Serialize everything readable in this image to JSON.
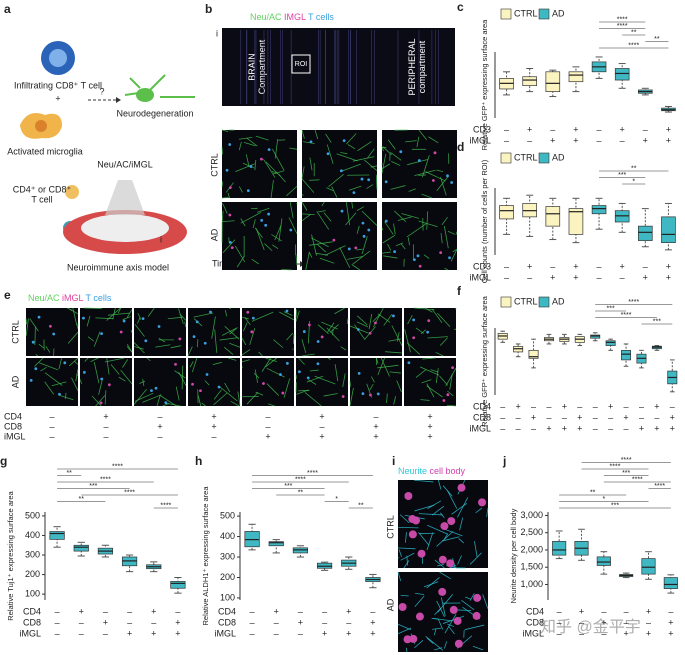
{
  "panel_a": {
    "label": "a",
    "t_cell": "Infiltrating CD8⁺ T cell",
    "plus": "+",
    "question": "?",
    "neurodegeneration": "Neurodegeneration",
    "microglia": "Activated microglia",
    "culture": "Neu/AC/iMGL",
    "cd_cells": [
      "CD4⁺ or CD8⁺",
      "T cell"
    ],
    "inset": "i",
    "model": "Neuroimmune axis model"
  },
  "panel_b": {
    "label": "b",
    "stains": [
      "Neu/AC",
      "IMGL",
      "T cells"
    ],
    "inset": "i",
    "brain": [
      "BRAIN",
      "Compartment"
    ],
    "roi": "ROI",
    "peripheral": [
      "PERIPHERAL",
      "compartment"
    ],
    "rows": [
      "CTRL",
      "AD"
    ],
    "time": "Time"
  },
  "panel_e": {
    "label": "e",
    "stains": [
      "Neu/AC",
      "iMGL",
      "T cells"
    ],
    "rows": [
      "CTRL",
      "AD"
    ],
    "conditions": [
      {
        "name": "CD4",
        "signs": [
          "–",
          "+",
          "–",
          "+",
          "–",
          "+",
          "–",
          "+"
        ]
      },
      {
        "name": "CD8",
        "signs": [
          "–",
          "–",
          "+",
          "+",
          "–",
          "–",
          "+",
          "+"
        ]
      },
      {
        "name": "iMGL",
        "signs": [
          "–",
          "–",
          "–",
          "–",
          "+",
          "+",
          "+",
          "+"
        ]
      }
    ]
  },
  "panel_i": {
    "label": "i",
    "stains": [
      "Neurite",
      "cell body"
    ],
    "rows": [
      "CTRL",
      "AD"
    ]
  },
  "watermark": "知乎 @金平宇",
  "chart_data": [
    {
      "type": "box",
      "label": "c",
      "ylabel": "Relative GFP⁺ expressing surface area",
      "ylim": [
        20,
        220
      ],
      "series": [
        {
          "name": "CTRL",
          "color": "#fbf3c0",
          "values": [
            [
              90,
              108,
              125,
              140,
              160
            ],
            [
              100,
              118,
              135,
              145,
              170
            ],
            [
              85,
              100,
              125,
              160,
              165
            ],
            [
              100,
              130,
              150,
              160,
              175
            ]
          ]
        },
        {
          "name": "AD",
          "color": "#3fb8c4",
          "values": [
            [
              140,
              160,
              175,
              190,
              205
            ],
            [
              110,
              135,
              155,
              170,
              185
            ],
            [
              90,
              95,
              100,
              105,
              110
            ],
            [
              38,
              42,
              45,
              50,
              55
            ]
          ]
        }
      ],
      "conditions": [
        {
          "name": "CD3",
          "signs": [
            "–",
            "+",
            "–",
            "+",
            "–",
            "+",
            "–",
            "+"
          ]
        },
        {
          "name": "iMGL",
          "signs": [
            "–",
            "–",
            "+",
            "+",
            "–",
            "–",
            "+",
            "+"
          ]
        }
      ],
      "brackets": [
        {
          "label": "****",
          "between": [
            4,
            6
          ]
        },
        {
          "label": "****",
          "between": [
            4,
            6
          ]
        },
        {
          "label": "**",
          "between": [
            5,
            6
          ]
        },
        {
          "label": "**",
          "between": [
            6,
            7
          ]
        },
        {
          "label": "****",
          "between": [
            4,
            7
          ]
        }
      ]
    },
    {
      "type": "box",
      "label": "d",
      "ylabel": "Cell counts (number of cells per ROI)",
      "ylim": [
        0,
        65
      ],
      "series": [
        {
          "name": "CTRL",
          "color": "#fbf3c0",
          "values": [
            [
              20,
              35,
              43,
              48,
              55
            ],
            [
              18,
              37,
              43,
              50,
              58
            ],
            [
              15,
              28,
              40,
              47,
              55
            ],
            [
              12,
              20,
              42,
              45,
              55
            ]
          ]
        },
        {
          "name": "AD",
          "color": "#3fb8c4",
          "values": [
            [
              25,
              40,
              45,
              48,
              55
            ],
            [
              22,
              32,
              38,
              43,
              50
            ],
            [
              8,
              14,
              22,
              28,
              45
            ],
            [
              5,
              12,
              20,
              37,
              50
            ]
          ]
        }
      ],
      "conditions": [
        {
          "name": "CD3",
          "signs": [
            "–",
            "+",
            "–",
            "+",
            "–",
            "+",
            "–",
            "+"
          ]
        },
        {
          "name": "iMGL",
          "signs": [
            "–",
            "–",
            "+",
            "+",
            "–",
            "–",
            "+",
            "+"
          ]
        }
      ],
      "brackets": [
        {
          "label": "**",
          "between": [
            4,
            7
          ]
        },
        {
          "label": "***",
          "between": [
            4,
            6
          ]
        },
        {
          "label": "*",
          "between": [
            5,
            6
          ]
        }
      ]
    },
    {
      "type": "box",
      "label": "f",
      "ylabel": "Relative GFP⁺ expressing surface area",
      "ylim": [
        20,
        230
      ],
      "series": [
        {
          "name": "CTRL",
          "color": "#fbf3c0",
          "values": [
            [
              185,
              195,
              205,
              213,
              220
            ],
            [
              140,
              155,
              165,
              172,
              180
            ],
            [
              105,
              135,
              140,
              160,
              195
            ],
            [
              180,
              190,
              195,
              200,
              210
            ],
            [
              180,
              188,
              195,
              200,
              210
            ],
            [
              175,
              185,
              195,
              203,
              210
            ]
          ]
        },
        {
          "name": "AD",
          "color": "#3fb8c4",
          "values": [
            [
              190,
              198,
              205,
              208,
              215
            ],
            [
              160,
              175,
              185,
              190,
              195
            ],
            [
              110,
              130,
              148,
              160,
              180
            ],
            [
              105,
              120,
              135,
              148,
              160
            ],
            [
              160,
              165,
              170,
              173,
              175
            ],
            [
              30,
              55,
              75,
              95,
              130
            ]
          ]
        }
      ],
      "conditions": [
        {
          "name": "CD4",
          "signs": [
            "–",
            "+",
            "–",
            "–",
            "+",
            "–",
            "–",
            "+",
            "–",
            "–",
            "+",
            "–"
          ]
        },
        {
          "name": "CD8",
          "signs": [
            "–",
            "–",
            "+",
            "–",
            "–",
            "+",
            "–",
            "–",
            "+",
            "–",
            "–",
            "+"
          ]
        },
        {
          "name": "iMGL",
          "signs": [
            "–",
            "–",
            "–",
            "+",
            "+",
            "+",
            "–",
            "–",
            "–",
            "+",
            "+",
            "+"
          ]
        }
      ],
      "brackets": [
        {
          "label": "****",
          "between": [
            6,
            11
          ]
        },
        {
          "label": "***",
          "between": [
            6,
            8
          ]
        },
        {
          "label": "****",
          "between": [
            6,
            10
          ]
        },
        {
          "label": "***",
          "between": [
            9,
            11
          ]
        }
      ]
    },
    {
      "type": "box",
      "label": "g",
      "ylabel": "Relative Tuj1⁺ expressing surface area",
      "ylim": [
        70,
        520
      ],
      "yticks": [
        100,
        200,
        300,
        400,
        500
      ],
      "color": "#3fb8c4",
      "values": [
        [
          340,
          380,
          410,
          420,
          445
        ],
        [
          295,
          320,
          340,
          350,
          365
        ],
        [
          290,
          305,
          320,
          335,
          350
        ],
        [
          215,
          245,
          270,
          290,
          300
        ],
        [
          215,
          230,
          240,
          250,
          265
        ],
        [
          105,
          130,
          155,
          165,
          185
        ]
      ],
      "conditions": [
        {
          "name": "CD4",
          "signs": [
            "–",
            "+",
            "–",
            "–",
            "+",
            "–"
          ]
        },
        {
          "name": "CD8",
          "signs": [
            "–",
            "–",
            "+",
            "–",
            "–",
            "+"
          ]
        },
        {
          "name": "iMGL",
          "signs": [
            "–",
            "–",
            "–",
            "+",
            "+",
            "+"
          ]
        }
      ],
      "brackets": [
        {
          "label": "****",
          "between": [
            0,
            5
          ]
        },
        {
          "label": "**",
          "between": [
            0,
            1
          ]
        },
        {
          "label": "****",
          "between": [
            0,
            4
          ]
        },
        {
          "label": "***",
          "between": [
            0,
            3
          ]
        },
        {
          "label": "****",
          "between": [
            1,
            5
          ]
        },
        {
          "label": "**",
          "between": [
            0,
            2
          ]
        },
        {
          "label": "****",
          "between": [
            4,
            5
          ]
        }
      ]
    },
    {
      "type": "box",
      "label": "h",
      "ylabel": "Relative ALDH1⁺ expressing surface area",
      "ylim": [
        90,
        520
      ],
      "yticks": [
        100,
        200,
        300,
        400,
        500
      ],
      "color": "#3fb8c4",
      "values": [
        [
          335,
          350,
          385,
          425,
          460
        ],
        [
          320,
          355,
          370,
          375,
          385
        ],
        [
          300,
          320,
          335,
          345,
          355
        ],
        [
          235,
          245,
          255,
          270,
          275
        ],
        [
          240,
          255,
          270,
          285,
          300
        ],
        [
          150,
          180,
          190,
          200,
          215
        ]
      ],
      "conditions": [
        {
          "name": "CD4",
          "signs": [
            "–",
            "+",
            "–",
            "–",
            "+",
            "–"
          ]
        },
        {
          "name": "CD8",
          "signs": [
            "–",
            "–",
            "+",
            "–",
            "–",
            "+"
          ]
        },
        {
          "name": "iMGL",
          "signs": [
            "–",
            "–",
            "–",
            "+",
            "+",
            "+"
          ]
        }
      ],
      "brackets": [
        {
          "label": "****",
          "between": [
            0,
            5
          ]
        },
        {
          "label": "****",
          "between": [
            0,
            4
          ]
        },
        {
          "label": "***",
          "between": [
            0,
            3
          ]
        },
        {
          "label": "**",
          "between": [
            1,
            3
          ]
        },
        {
          "label": "*",
          "between": [
            3,
            4
          ]
        },
        {
          "label": "**",
          "between": [
            4,
            5
          ]
        }
      ]
    },
    {
      "type": "box",
      "label": "j",
      "ylabel": "Neurite density per cell body",
      "ylim": [
        550,
        3100
      ],
      "yticks": [
        {
          "value": 1000,
          "label": "1,000"
        },
        {
          "value": 1500,
          "label": "1,500"
        },
        {
          "value": 2000,
          "label": "2,000"
        },
        {
          "value": 2500,
          "label": "2,500"
        },
        {
          "value": 3000,
          "label": "3,000"
        }
      ],
      "color": "#3fb8c4",
      "values": [
        [
          1750,
          1850,
          2000,
          2250,
          2550
        ],
        [
          1700,
          1850,
          2050,
          2250,
          2600
        ],
        [
          1300,
          1550,
          1650,
          1800,
          1950
        ],
        [
          1200,
          1230,
          1260,
          1290,
          1330
        ],
        [
          1150,
          1300,
          1500,
          1750,
          1950
        ],
        [
          750,
          880,
          1000,
          1200,
          1280
        ]
      ],
      "conditions": [
        {
          "name": "CD4",
          "signs": [
            "–",
            "+",
            "–",
            "–",
            "+",
            "–"
          ]
        },
        {
          "name": "CD8",
          "signs": [
            "–",
            "–",
            "+",
            "–",
            "–",
            "+"
          ]
        },
        {
          "name": "iMGL",
          "signs": [
            "–",
            "–",
            "–",
            "+",
            "+",
            "+"
          ]
        }
      ],
      "brackets": [
        {
          "label": "****",
          "between": [
            1,
            5
          ]
        },
        {
          "label": "****",
          "between": [
            1,
            4
          ]
        },
        {
          "label": "***",
          "between": [
            2,
            4
          ]
        },
        {
          "label": "****",
          "between": [
            2,
            5
          ]
        },
        {
          "label": "****",
          "between": [
            4,
            5
          ]
        },
        {
          "label": "**",
          "between": [
            0,
            3
          ]
        },
        {
          "label": "*",
          "between": [
            0,
            4
          ]
        },
        {
          "label": "***",
          "between": [
            0,
            5
          ]
        }
      ]
    }
  ]
}
